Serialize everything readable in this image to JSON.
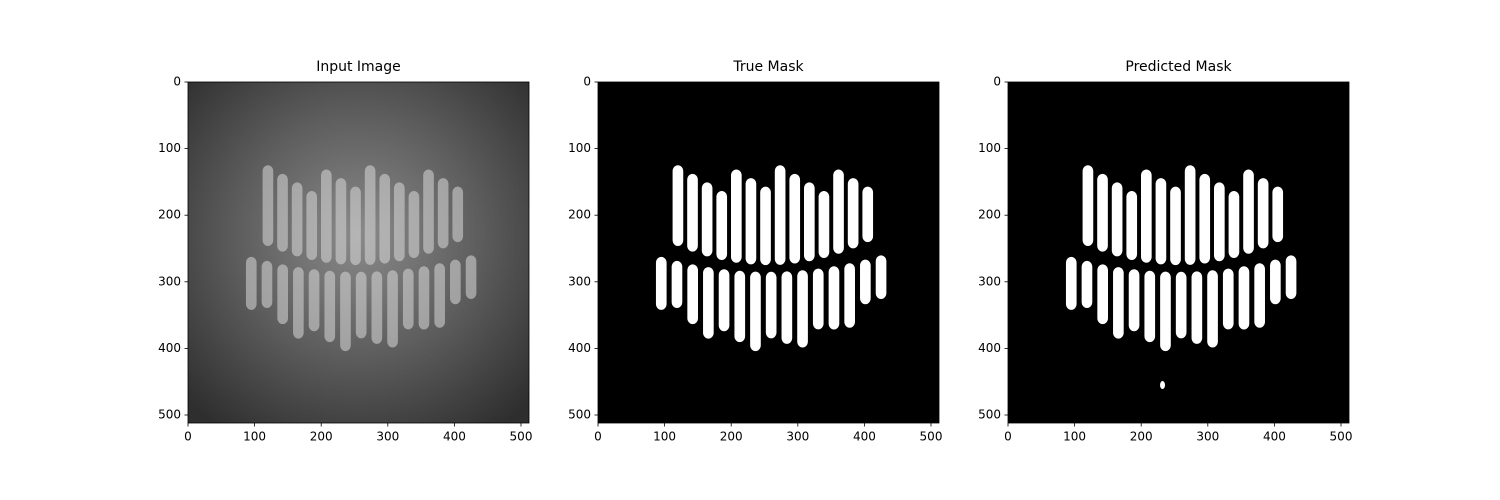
{
  "chart_data": [
    {
      "type": "image",
      "title": "Input Image",
      "xlim": [
        0,
        512
      ],
      "ylim": [
        512,
        0
      ],
      "xticks": [
        0,
        100,
        200,
        300,
        400,
        500
      ],
      "yticks": [
        0,
        100,
        200,
        300,
        400,
        500
      ]
    },
    {
      "type": "image",
      "title": "True Mask",
      "xlim": [
        0,
        512
      ],
      "ylim": [
        512,
        0
      ],
      "xticks": [
        0,
        100,
        200,
        300,
        400,
        500
      ],
      "yticks": [
        0,
        100,
        200,
        300,
        400,
        500
      ]
    },
    {
      "type": "image",
      "title": "Predicted Mask",
      "xlim": [
        0,
        512
      ],
      "ylim": [
        512,
        0
      ],
      "xticks": [
        0,
        100,
        200,
        300,
        400,
        500
      ],
      "yticks": [
        0,
        100,
        200,
        300,
        400,
        500
      ]
    }
  ]
}
